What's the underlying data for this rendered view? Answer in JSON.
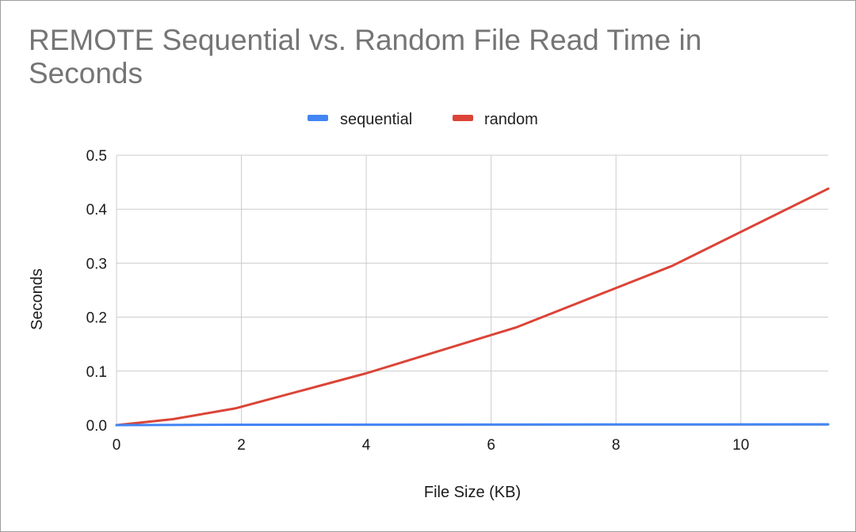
{
  "chart_data": {
    "type": "line",
    "title": "REMOTE Sequential vs. Random File Read Time in Seconds",
    "xlabel": "File Size (KB)",
    "ylabel": "Seconds",
    "xlim": [
      0,
      11.4
    ],
    "ylim": [
      0,
      0.5
    ],
    "x_ticks": [
      "0",
      "2",
      "4",
      "6",
      "8",
      "10"
    ],
    "y_ticks": [
      "0.0",
      "0.1",
      "0.2",
      "0.3",
      "0.4",
      "0.5"
    ],
    "grid": true,
    "legend_position": "top",
    "series": [
      {
        "name": "sequential",
        "color": "#4285f4",
        "x": [
          0,
          0.9,
          1.9,
          4.0,
          6.4,
          8.9,
          11.4
        ],
        "y": [
          0.0,
          0.0005,
          0.0007,
          0.0009,
          0.0011,
          0.0013,
          0.0015
        ]
      },
      {
        "name": "random",
        "color": "#db4437",
        "x": [
          0,
          0.9,
          1.9,
          4.0,
          6.4,
          8.9,
          11.4
        ],
        "y": [
          0.0,
          0.011,
          0.031,
          0.096,
          0.181,
          0.295,
          0.438
        ]
      }
    ]
  }
}
